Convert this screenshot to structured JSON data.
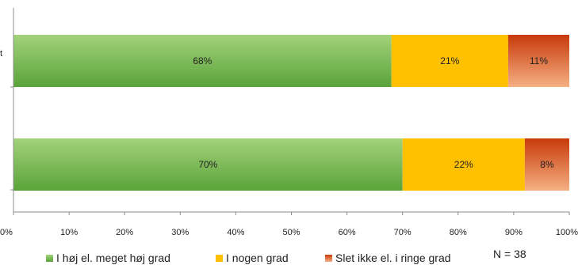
{
  "chart_data": {
    "type": "bar",
    "orientation": "horizontal",
    "stacked": true,
    "categories": [
      "",
      ""
    ],
    "series": [
      {
        "name": "I høj el. meget høj grad",
        "values": [
          68,
          70
        ],
        "color": "#6fb24a"
      },
      {
        "name": "I nogen grad",
        "values": [
          21,
          22
        ],
        "color": "#ffc000"
      },
      {
        "name": "Slet ikke el. i ringe grad",
        "values": [
          11,
          8
        ],
        "color": "#d9480f"
      }
    ],
    "data_labels": [
      [
        "68%",
        "21%",
        "11%"
      ],
      [
        "70%",
        "22%",
        "8%"
      ]
    ],
    "xlim": [
      0,
      100
    ],
    "xticks": [
      "0%",
      "10%",
      "20%",
      "30%",
      "40%",
      "50%",
      "60%",
      "70%",
      "80%",
      "90%",
      "100%"
    ],
    "grid": false,
    "legend_position": "bottom",
    "annotation": "N = 38"
  }
}
